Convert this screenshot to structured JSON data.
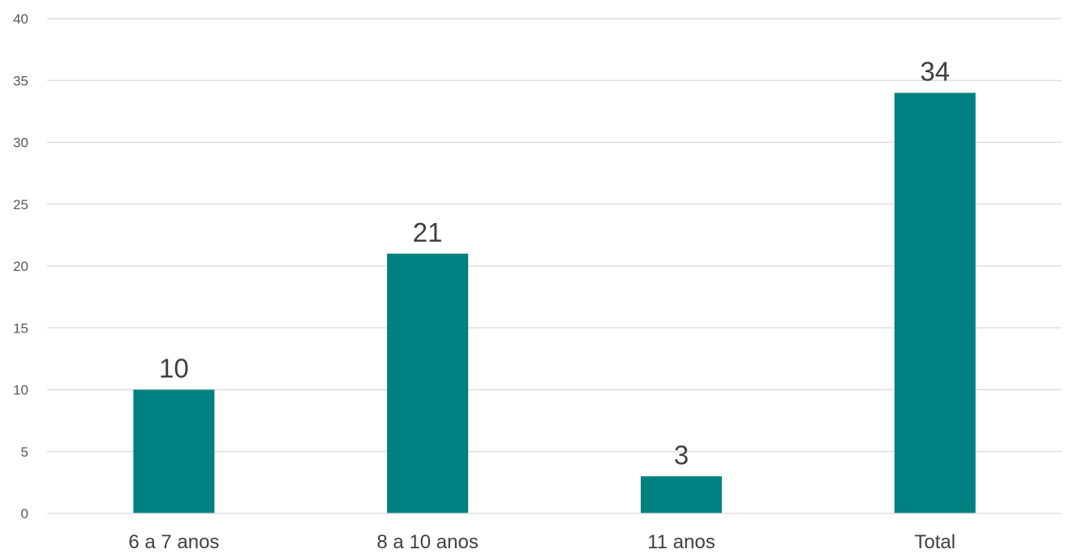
{
  "chart_data": {
    "type": "bar",
    "categories": [
      "6 a 7 anos",
      "8 a 10 anos",
      "11 anos",
      "Total"
    ],
    "values": [
      10,
      21,
      3,
      34
    ],
    "data_labels": [
      "10",
      "21",
      "3",
      "34"
    ],
    "yticks": [
      "0",
      "5",
      "10",
      "15",
      "20",
      "25",
      "30",
      "35",
      "40"
    ],
    "ylim": [
      0,
      40
    ],
    "grid": true,
    "legend": "none",
    "bar_color": "#008080",
    "title": "",
    "xlabel": "",
    "ylabel": ""
  }
}
